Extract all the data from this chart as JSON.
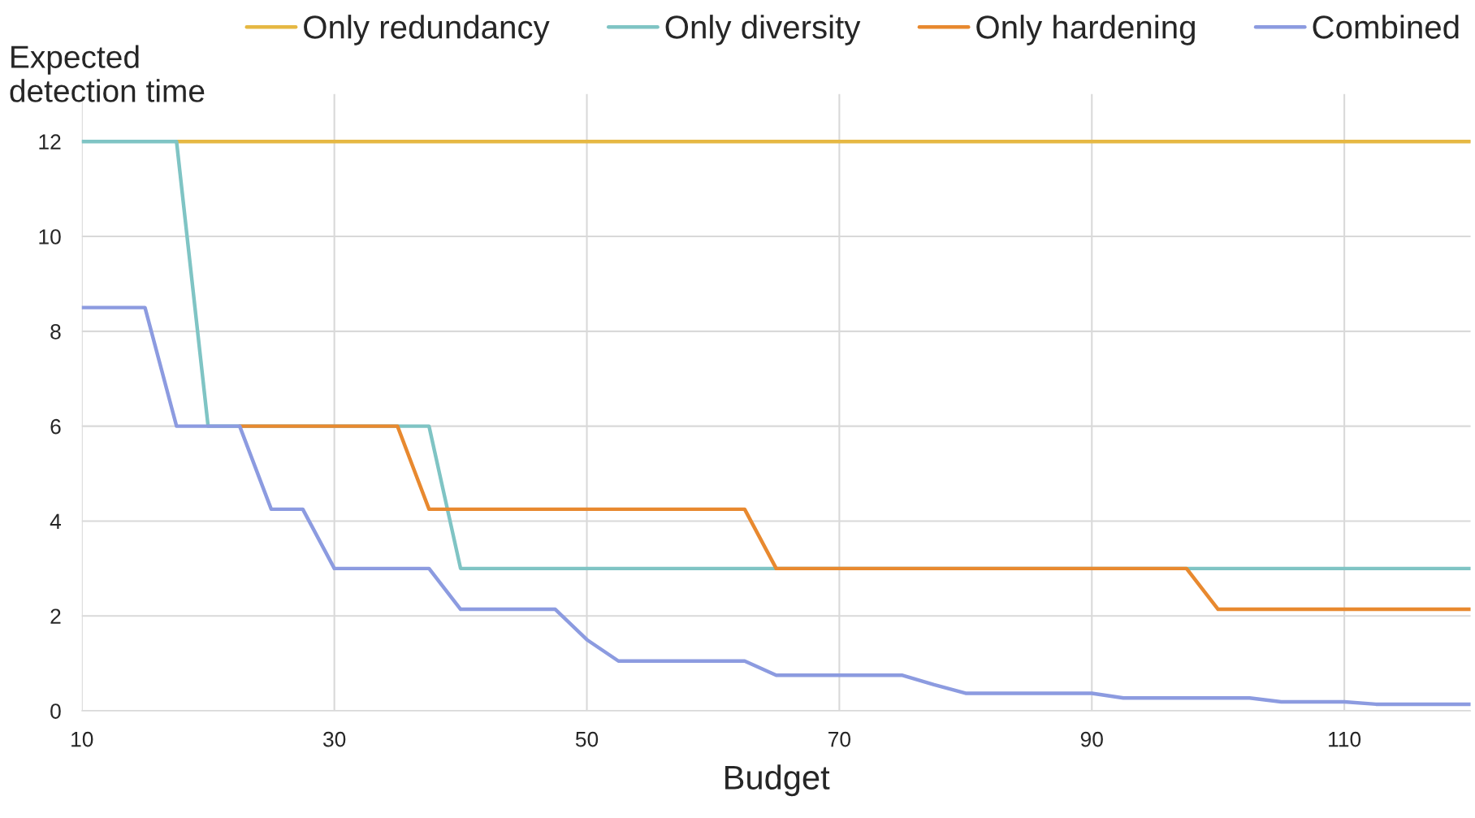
{
  "chart_data": {
    "type": "line",
    "xlabel": "Budget",
    "ylabel": "Expected\ndetection time",
    "xlim": [
      10,
      120
    ],
    "xticks": [
      10,
      30,
      50,
      70,
      90,
      110
    ],
    "ylim": [
      0,
      13
    ],
    "yticks": [
      0,
      2,
      4,
      6,
      8,
      10,
      12
    ],
    "grid": true,
    "legend": "top",
    "marker": "none",
    "line_style": "solid",
    "series": [
      {
        "name": "Only redundancy",
        "color": "#e6b843",
        "x": [
          17.5,
          120
        ],
        "values": [
          12,
          12
        ]
      },
      {
        "name": "Only diversity",
        "color": "#7fc4c4",
        "x": [
          10,
          17.5,
          20,
          37.5,
          40,
          120
        ],
        "values": [
          12,
          12,
          6,
          6,
          3,
          3
        ]
      },
      {
        "name": "Only hardening",
        "color": "#e8892f",
        "x": [
          22.5,
          35,
          37.5,
          62.5,
          65,
          97.5,
          100,
          120
        ],
        "values": [
          6,
          6,
          4.25,
          4.25,
          3,
          3,
          2.14,
          2.14
        ]
      },
      {
        "name": "Combined",
        "color": "#8c9be0",
        "x": [
          10,
          15,
          17.5,
          22.5,
          25,
          27.5,
          30,
          37.5,
          40,
          47.5,
          50,
          52.5,
          62.5,
          65,
          75,
          77.5,
          80,
          90,
          92.5,
          102.5,
          105,
          110,
          112.5,
          120
        ],
        "values": [
          8.5,
          8.5,
          6,
          6,
          4.25,
          4.25,
          3,
          3,
          2.14,
          2.14,
          1.5,
          1.05,
          1.05,
          0.75,
          0.75,
          0.55,
          0.37,
          0.37,
          0.27,
          0.27,
          0.19,
          0.19,
          0.14,
          0.14
        ]
      }
    ]
  }
}
